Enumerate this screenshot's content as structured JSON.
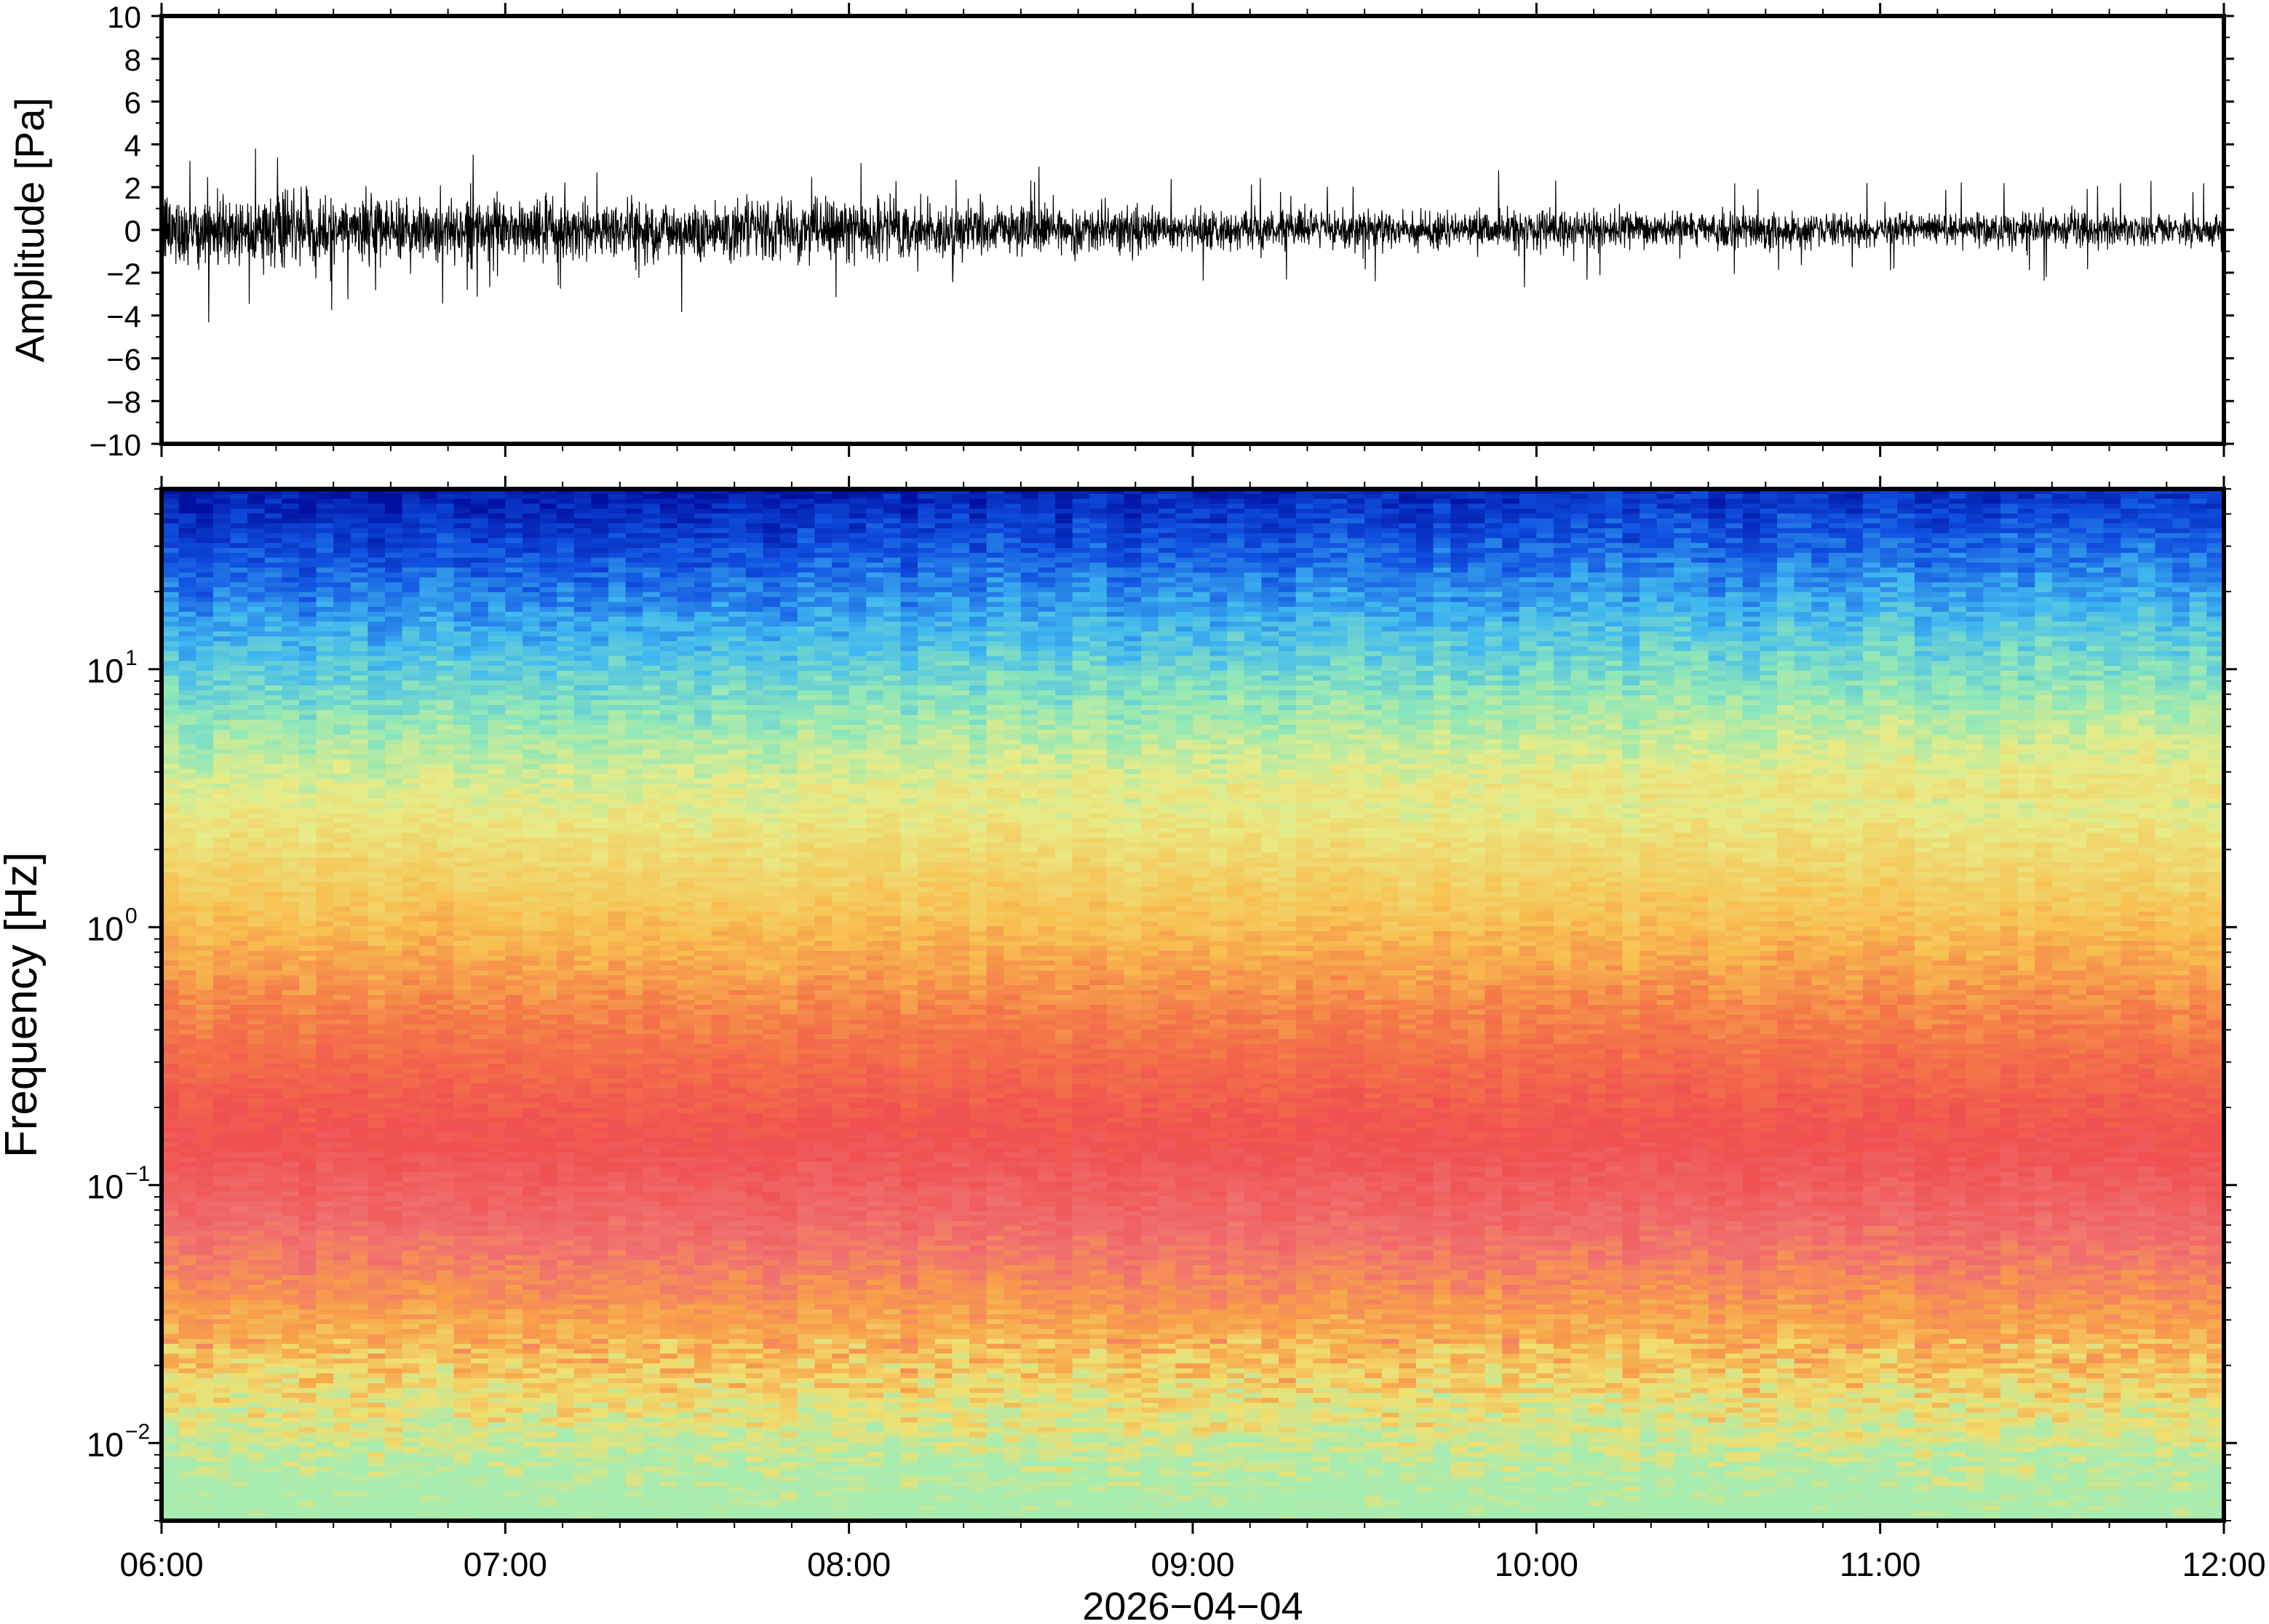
{
  "chart_data": [
    {
      "type": "line",
      "title": "",
      "xlabel": "",
      "ylabel": "Amplitude [Pa]",
      "ylim": [
        -10,
        10
      ],
      "yticks": [
        -10,
        -8,
        -6,
        -4,
        -2,
        0,
        2,
        4,
        6,
        8,
        10
      ],
      "ytick_labels": [
        "−10",
        "−8",
        "−6",
        "−4",
        "−2",
        "0",
        "2",
        "4",
        "6",
        "8",
        "10"
      ],
      "xlim": [
        "06:00",
        "12:00"
      ],
      "grid": false,
      "series": [
        {
          "color": "#000000",
          "description_envelope": {
            "x_hours": [
              6.0,
              6.5,
              7.0,
              7.5,
              8.0,
              8.5,
              9.0,
              9.5,
              10.0,
              10.5,
              11.0,
              11.5,
              12.0
            ],
            "typical_abs_amplitude": [
              1.6,
              1.4,
              1.3,
              1.3,
              1.2,
              1.1,
              0.8,
              0.8,
              0.8,
              0.7,
              0.7,
              0.7,
              0.7
            ],
            "peak_abs_amplitude": [
              4.6,
              4.1,
              3.5,
              4.0,
              3.2,
              3.0,
              2.6,
              2.4,
              3.3,
              2.3,
              2.3,
              2.4,
              2.5
            ]
          }
        }
      ]
    },
    {
      "type": "heatmap",
      "title": "",
      "xlabel": "2026−04−04",
      "ylabel": "Frequency [Hz]",
      "x_tick_labels": [
        "06:00",
        "07:00",
        "08:00",
        "09:00",
        "10:00",
        "11:00",
        "12:00"
      ],
      "x_hours": [
        6,
        7,
        8,
        9,
        10,
        11,
        12
      ],
      "y_scale": "log",
      "ylim": [
        0.005,
        50
      ],
      "ytick_values": [
        0.01,
        0.1,
        1,
        10
      ],
      "ytick_labels": [
        {
          "base": "10",
          "exp": "−2"
        },
        {
          "base": "10",
          "exp": "−1"
        },
        {
          "base": "10",
          "exp": "0"
        },
        {
          "base": "10",
          "exp": "1"
        }
      ],
      "colormap": [
        "#00007f",
        "#0000ff",
        "#0080ff",
        "#40c8f0",
        "#80e8b0",
        "#c8f090",
        "#f0e878",
        "#ffb040",
        "#f87050",
        "#f04850",
        "#ff8888"
      ],
      "color_by_frequency_hz": [
        {
          "f": 50,
          "color": "#0010a0"
        },
        {
          "f": 25,
          "color": "#1050e0"
        },
        {
          "f": 12,
          "color": "#40b8f0"
        },
        {
          "f": 6,
          "color": "#90e8b8"
        },
        {
          "f": 3,
          "color": "#e8ec88"
        },
        {
          "f": 1,
          "color": "#f8c050"
        },
        {
          "f": 0.4,
          "color": "#f47848"
        },
        {
          "f": 0.15,
          "color": "#f05050"
        },
        {
          "f": 0.06,
          "color": "#f07070"
        },
        {
          "f": 0.03,
          "color": "#f8a048"
        },
        {
          "f": 0.015,
          "color": "#f0e070"
        },
        {
          "f": 0.007,
          "color": "#a8ecb0"
        }
      ]
    }
  ]
}
